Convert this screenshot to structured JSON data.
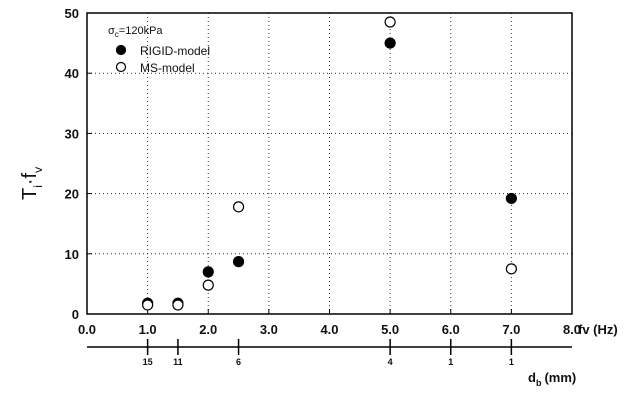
{
  "chart_data": {
    "type": "scatter",
    "annotation": {
      "symbol": "σ",
      "sub": "c",
      "rest": "=120kPa"
    },
    "y_label": {
      "main": "T",
      "sub": "i",
      "mid": "·f",
      "sub2": "v"
    },
    "x_label": "fv (Hz)",
    "x2_label": {
      "main": "d",
      "sub": "b",
      "rest": "(mm)"
    },
    "xlim": [
      0,
      8
    ],
    "ylim": [
      0,
      50
    ],
    "xticks": [
      {
        "value": 0,
        "label": "0.0"
      },
      {
        "value": 1,
        "label": "1.0"
      },
      {
        "value": 2,
        "label": "2.0"
      },
      {
        "value": 3,
        "label": "3.0"
      },
      {
        "value": 4,
        "label": "4.0"
      },
      {
        "value": 5,
        "label": "5.0"
      },
      {
        "value": 6,
        "label": "6.0"
      },
      {
        "value": 7,
        "label": "7.0"
      },
      {
        "value": 8,
        "label": "8.0"
      }
    ],
    "yticks": [
      0,
      10,
      20,
      30,
      40,
      50
    ],
    "x2ticks": [
      {
        "value": 1.0,
        "label": "15"
      },
      {
        "value": 1.5,
        "label": "11"
      },
      {
        "value": 2.5,
        "label": "6"
      },
      {
        "value": 5.0,
        "label": "4"
      },
      {
        "value": 6.0,
        "label": "1"
      },
      {
        "value": 7.0,
        "label": "1"
      }
    ],
    "grid": true,
    "legend": "upper left",
    "series": [
      {
        "name": "RIGID-model",
        "color": "#000000",
        "filled": true,
        "x": [
          1.0,
          1.5,
          2.0,
          2.5,
          5.0,
          7.0
        ],
        "values": [
          1.8,
          1.8,
          7.0,
          8.7,
          45,
          19.2
        ]
      },
      {
        "name": "MS-model",
        "color": "#000000",
        "filled": false,
        "x": [
          1.0,
          1.5,
          2.0,
          2.5,
          5.0,
          7.0
        ],
        "values": [
          1.5,
          1.5,
          4.8,
          17.8,
          48.5,
          7.5
        ]
      }
    ]
  }
}
